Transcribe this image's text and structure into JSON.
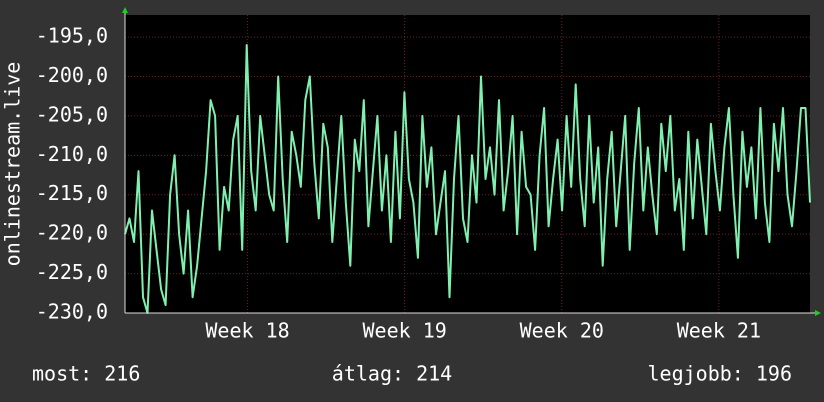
{
  "chart_data": {
    "type": "line",
    "ylabel": "onlinestream.live",
    "color": "#80f0b0",
    "ylim": [
      -230,
      -192.2
    ],
    "yticks": [
      {
        "value": -230,
        "label": "-230,0"
      },
      {
        "value": -225,
        "label": "-225,0"
      },
      {
        "value": -220,
        "label": "-220,0"
      },
      {
        "value": -215,
        "label": "-215,0"
      },
      {
        "value": -210,
        "label": "-210,0"
      },
      {
        "value": -205,
        "label": "-205,0"
      },
      {
        "value": -200,
        "label": "-200,0"
      },
      {
        "value": -195,
        "label": "-195,0"
      }
    ],
    "xlim": [
      17.22,
      21.58
    ],
    "xticks": [
      {
        "value": 18,
        "label": "Week 18"
      },
      {
        "value": 19,
        "label": "Week 19"
      },
      {
        "value": 20,
        "label": "Week 20"
      },
      {
        "value": 21,
        "label": "Week 21"
      }
    ],
    "grid": true,
    "values": [
      -220,
      -218,
      -221,
      -212,
      -228,
      -230,
      -217,
      -222,
      -227,
      -229,
      -215,
      -210,
      -220,
      -225,
      -217,
      -228,
      -224,
      -218,
      -212,
      -203,
      -205,
      -222,
      -214,
      -217,
      -208,
      -205,
      -222,
      -196,
      -212,
      -217,
      -205,
      -210,
      -215,
      -217,
      -200,
      -213,
      -221,
      -207,
      -210,
      -214,
      -203,
      -200,
      -211,
      -218,
      -206,
      -209,
      -221,
      -213,
      -205,
      -216,
      -224,
      -208,
      -212,
      -203,
      -219,
      -212,
      -205,
      -217,
      -210,
      -221,
      -207,
      -218,
      -202,
      -213,
      -216,
      -223,
      -205,
      -214,
      -209,
      -220,
      -216,
      -212,
      -228,
      -213,
      -205,
      -218,
      -221,
      -210,
      -216,
      -200,
      -213,
      -209,
      -215,
      -203,
      -217,
      -212,
      -205,
      -220,
      -207,
      -214,
      -215,
      -222,
      -210,
      -204,
      -219,
      -213,
      -208,
      -217,
      -205,
      -214,
      -201,
      -213,
      -219,
      -205,
      -216,
      -209,
      -224,
      -213,
      -207,
      -219,
      -212,
      -205,
      -222,
      -211,
      -204,
      -217,
      -209,
      -215,
      -220,
      -206,
      -212,
      -205,
      -217,
      -213,
      -222,
      -207,
      -218,
      -208,
      -214,
      -220,
      -206,
      -212,
      -217,
      -209,
      -204,
      -215,
      -223,
      -207,
      -214,
      -209,
      -218,
      -204,
      -216,
      -221,
      -206,
      -212,
      -204,
      -215,
      -219,
      -212,
      -204,
      -204,
      -216
    ],
    "footer": [
      "most: 216",
      "átlag: 214",
      "legjobb: 196"
    ]
  }
}
